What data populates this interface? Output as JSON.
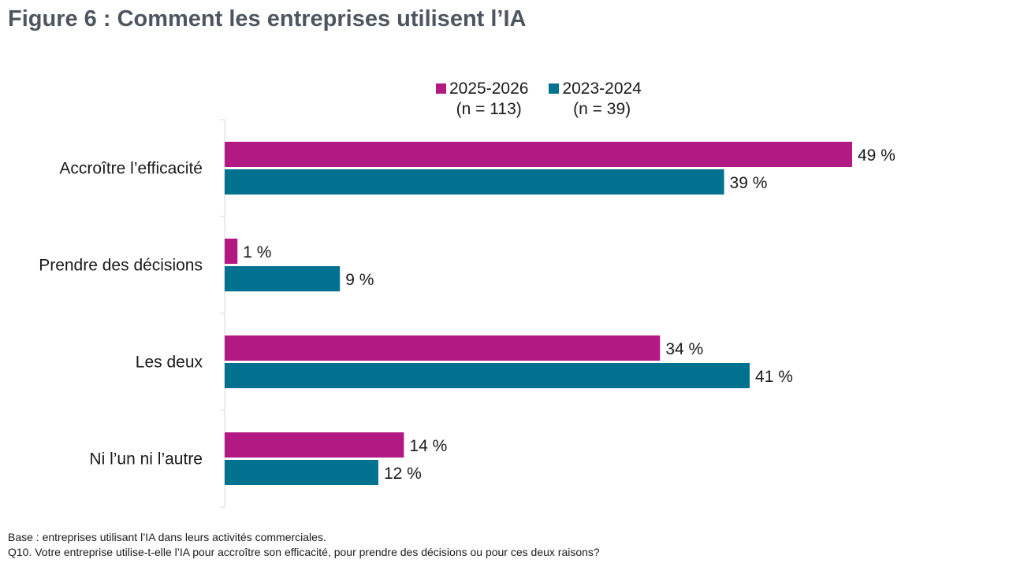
{
  "title": "Figure 6 : Comment les entreprises utilisent l’IA",
  "legend": [
    {
      "label": "2025-2026",
      "sublabel": "(n = 113)",
      "color": "#b31983"
    },
    {
      "label": "2023-2024",
      "sublabel": "(n = 39)",
      "color": "#007290"
    }
  ],
  "chart_data": {
    "type": "bar",
    "orientation": "horizontal",
    "categories": [
      "Accroître l’efficacité",
      "Prendre des décisions",
      "Les deux",
      "Ni l’un ni l’autre"
    ],
    "series": [
      {
        "name": "2025-2026 (n = 113)",
        "values": [
          49,
          1,
          34,
          14
        ],
        "labels": [
          "49 %",
          "1 %",
          "34 %",
          "14 %"
        ],
        "color": "#b31983"
      },
      {
        "name": "2023-2024 (n = 39)",
        "values": [
          39,
          9,
          41,
          12
        ],
        "labels": [
          "39 %",
          "9 %",
          "41 %",
          "12 %"
        ],
        "color": "#007290"
      }
    ],
    "xlim": [
      0,
      50
    ],
    "grid": false,
    "legend_position": "top-center"
  },
  "notes": {
    "base": "Base : entreprises utilisant l’IA dans leurs activités commerciales.",
    "question": "Q10. Votre entreprise utilise-t-elle l’IA pour accroître son efficacité, pour prendre des décisions ou pour ces deux raisons?"
  }
}
